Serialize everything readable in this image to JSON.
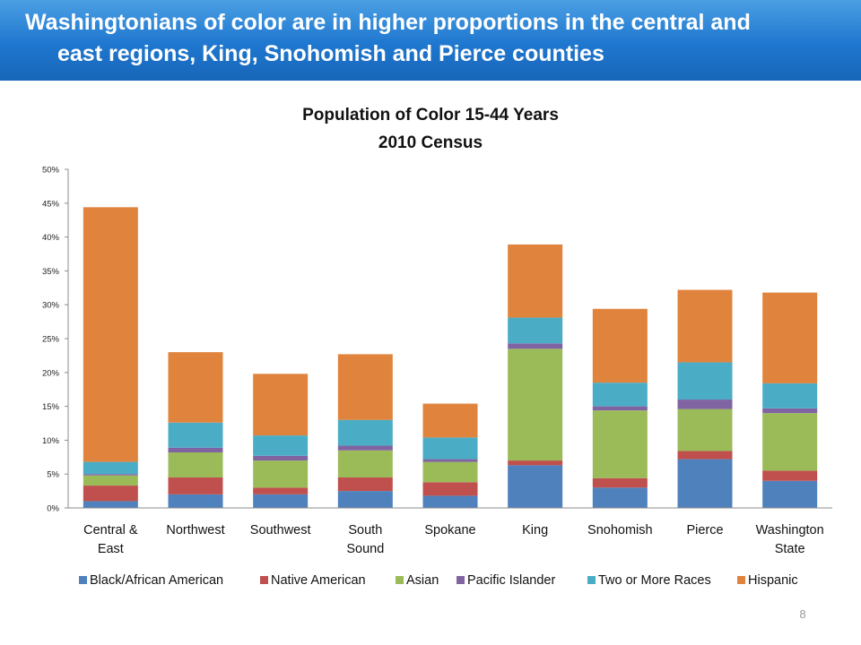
{
  "header": {
    "title_line1": "Washingtonians of color are in higher proportions in the central and",
    "title_line2": "east regions,  King, Snohomish and Pierce counties"
  },
  "slide_number": "8",
  "chart_data": {
    "type": "bar",
    "stacked": true,
    "title": "Population  of Color 15-44 Years",
    "subtitle": "2010 Census",
    "categories": [
      "Central & East",
      "Northwest",
      "Southwest",
      "South Sound",
      "Spokane",
      "King",
      "Snohomish",
      "Pierce",
      "Washington State"
    ],
    "ylim": [
      0,
      50
    ],
    "yticks": [
      0,
      5,
      10,
      15,
      20,
      25,
      30,
      35,
      40,
      45,
      50
    ],
    "ytick_suffix": "%",
    "legend_position": "bottom",
    "series": [
      {
        "name": "Black/African American",
        "color": "#4f81bd",
        "values": [
          1.0,
          2.0,
          2.0,
          2.5,
          1.8,
          6.3,
          3.0,
          7.2,
          4.0
        ]
      },
      {
        "name": "Native American",
        "color": "#c0504d",
        "values": [
          2.3,
          2.5,
          1.0,
          2.0,
          2.0,
          0.7,
          1.4,
          1.2,
          1.5
        ]
      },
      {
        "name": "Asian",
        "color": "#9bbb59",
        "values": [
          1.5,
          3.7,
          4.0,
          4.0,
          3.0,
          16.5,
          10.0,
          6.2,
          8.5
        ]
      },
      {
        "name": "Pacific Islander",
        "color": "#8064a2",
        "values": [
          0.2,
          0.7,
          0.7,
          0.7,
          0.4,
          0.8,
          0.6,
          1.4,
          0.7
        ]
      },
      {
        "name": "Two or More Races",
        "color": "#4bacc6",
        "values": [
          1.8,
          3.7,
          3.0,
          3.8,
          3.2,
          3.8,
          3.5,
          5.5,
          3.7
        ]
      },
      {
        "name": "Hispanic",
        "color": "#e0843d",
        "values": [
          37.6,
          10.4,
          9.1,
          9.7,
          5.0,
          10.8,
          10.9,
          10.7,
          13.4
        ]
      }
    ]
  }
}
